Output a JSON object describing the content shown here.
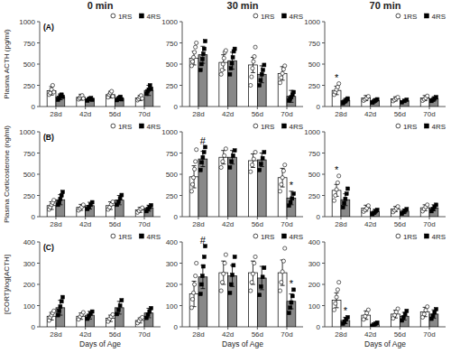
{
  "chart_data": [
    {
      "type": "bar",
      "title": "0 min",
      "ylabel": "Plasma ACTH (pg/ml)",
      "categories": [
        "28d",
        "42d",
        "56d",
        "70d"
      ],
      "series": [
        {
          "name": "1RS",
          "color": "white",
          "marker": "circle",
          "values": [
            185,
            110,
            140,
            100
          ],
          "errors": [
            50,
            35,
            40,
            30
          ],
          "points": [
            [
              140,
              160,
              200,
              250,
              170
            ],
            [
              85,
              100,
              120,
              130,
              95
            ],
            [
              110,
              140,
              160,
              180,
              120
            ],
            [
              75,
              90,
              110,
              130,
              95
            ]
          ]
        },
        {
          "name": "4RS",
          "color": "#888888",
          "marker": "square",
          "values": [
            115,
            90,
            95,
            190
          ],
          "errors": [
            35,
            20,
            25,
            60
          ],
          "points": [
            [
              80,
              100,
              120,
              140,
              115
            ],
            [
              70,
              85,
              90,
              100,
              80
            ],
            [
              75,
              90,
              100,
              115,
              85
            ],
            [
              150,
              180,
              200,
              250,
              210
            ]
          ]
        }
      ],
      "ylim": [
        0,
        1000
      ],
      "yticks": [
        0,
        250,
        500,
        750,
        1000
      ],
      "grid": false,
      "legend": "upper right",
      "annotations": [
        {
          "text": "(A)"
        }
      ]
    },
    {
      "type": "bar",
      "title": "30 min",
      "categories": [
        "28d",
        "42d",
        "56d",
        "70d"
      ],
      "series": [
        {
          "name": "1RS",
          "color": "white",
          "marker": "circle",
          "values": [
            570,
            520,
            490,
            390
          ],
          "errors": [
            80,
            90,
            90,
            80
          ],
          "points": [
            [
              480,
              530,
              580,
              640,
              700,
              750
            ],
            [
              380,
              430,
              500,
              570,
              640,
              660
            ],
            [
              250,
              350,
              450,
              530,
              590,
              700
            ],
            [
              280,
              340,
              390,
              440,
              480
            ]
          ]
        },
        {
          "name": "4RS",
          "color": "#888888",
          "marker": "square",
          "values": [
            610,
            540,
            380,
            120
          ],
          "errors": [
            100,
            100,
            100,
            70
          ],
          "points": [
            [
              430,
              500,
              560,
              620,
              680,
              770
            ],
            [
              380,
              450,
              510,
              580,
              650,
              680
            ],
            [
              250,
              310,
              380,
              430,
              490
            ],
            [
              70,
              90,
              110,
              140,
              170
            ]
          ]
        }
      ],
      "ylim": [
        0,
        1000
      ],
      "yticks": [
        0,
        250,
        500,
        750,
        1000
      ],
      "grid": false,
      "legend": "upper right"
    },
    {
      "type": "bar",
      "title": "70 min",
      "categories": [
        "28d",
        "42d",
        "56d",
        "70d"
      ],
      "series": [
        {
          "name": "1RS",
          "color": "white",
          "marker": "circle",
          "values": [
            190,
            100,
            90,
            100
          ],
          "errors": [
            50,
            30,
            25,
            30
          ],
          "points": [
            [
              140,
              170,
              200,
              230,
              270
            ],
            [
              70,
              85,
              100,
              120
            ],
            [
              65,
              80,
              95,
              110
            ],
            [
              70,
              85,
              100,
              125
            ]
          ]
        },
        {
          "name": "4RS",
          "color": "#888888",
          "marker": "square",
          "values": [
            70,
            70,
            70,
            90
          ],
          "errors": [
            25,
            20,
            15,
            25
          ],
          "points": [
            [
              40,
              55,
              65,
              80,
              95
            ],
            [
              45,
              60,
              75,
              85
            ],
            [
              50,
              65,
              80
            ],
            [
              65,
              80,
              95,
              110
            ]
          ]
        }
      ],
      "ylim": [
        0,
        1000
      ],
      "yticks": [
        0,
        250,
        500,
        750,
        1000
      ],
      "grid": false,
      "legend": "upper right",
      "annotations": [
        {
          "text": "*",
          "category": "28d",
          "series": "1RS"
        }
      ]
    },
    {
      "type": "bar",
      "ylabel": "Plasma Corticosterone (ng/ml)",
      "categories": [
        "28d",
        "42d",
        "56d",
        "70d"
      ],
      "series": [
        {
          "name": "1RS",
          "color": "white",
          "marker": "circle",
          "values": [
            130,
            110,
            130,
            80
          ],
          "errors": [
            45,
            35,
            45,
            30
          ],
          "points": [
            [
              85,
              110,
              140,
              165,
              195
            ],
            [
              75,
              95,
              115,
              140
            ],
            [
              85,
              110,
              145,
              175
            ],
            [
              50,
              70,
              90,
              105
            ]
          ]
        },
        {
          "name": "4RS",
          "color": "#888888",
          "marker": "square",
          "values": [
            200,
            130,
            195,
            100
          ],
          "errors": [
            60,
            40,
            55,
            35
          ],
          "points": [
            [
              140,
              170,
              210,
              250,
              290
            ],
            [
              90,
              115,
              140,
              170
            ],
            [
              140,
              175,
              215,
              255
            ],
            [
              65,
              90,
              110,
              135
            ]
          ]
        }
      ],
      "ylim": [
        0,
        1000
      ],
      "yticks": [
        0,
        250,
        500,
        750,
        1000
      ],
      "grid": false,
      "legend": "upper right",
      "annotations": [
        {
          "text": "(B)"
        }
      ]
    },
    {
      "type": "bar",
      "categories": [
        "28d",
        "42d",
        "56d",
        "70d"
      ],
      "series": [
        {
          "name": "1RS",
          "color": "white",
          "marker": "circle",
          "values": [
            470,
            700,
            660,
            460
          ],
          "errors": [
            130,
            80,
            80,
            110
          ],
          "points": [
            [
              300,
              380,
              460,
              560,
              650,
              790
            ],
            [
              580,
              650,
              720,
              800
            ],
            [
              530,
              610,
              680,
              760
            ],
            [
              300,
              380,
              460,
              540,
              610
            ]
          ]
        },
        {
          "name": "4RS",
          "color": "#888888",
          "marker": "square",
          "values": [
            680,
            700,
            670,
            220
          ],
          "errors": [
            90,
            80,
            80,
            80
          ],
          "points": [
            [
              550,
              640,
              700,
              760,
              820
            ],
            [
              580,
              650,
              720,
              780
            ],
            [
              550,
              620,
              690,
              760
            ],
            [
              130,
              170,
              215,
              270
            ]
          ]
        }
      ],
      "ylim": [
        0,
        1000
      ],
      "yticks": [
        0,
        250,
        500,
        750,
        1000
      ],
      "grid": false,
      "legend": "upper right",
      "annotations": [
        {
          "text": "#",
          "category": "28d",
          "series": "4RS"
        },
        {
          "text": "*",
          "category": "70d",
          "series": "4RS"
        }
      ]
    },
    {
      "type": "bar",
      "categories": [
        "28d",
        "42d",
        "56d",
        "70d"
      ],
      "series": [
        {
          "name": "1RS",
          "color": "white",
          "marker": "circle",
          "values": [
            310,
            100,
            90,
            105
          ],
          "errors": [
            70,
            35,
            30,
            35
          ],
          "points": [
            [
              190,
              250,
              320,
              400,
              480
            ],
            [
              60,
              80,
              100,
              130
            ],
            [
              55,
              75,
              95,
              120
            ],
            [
              65,
              90,
              115,
              140
            ]
          ]
        },
        {
          "name": "4RS",
          "color": "#888888",
          "marker": "square",
          "values": [
            200,
            60,
            65,
            105
          ],
          "errors": [
            70,
            25,
            25,
            35
          ],
          "points": [
            [
              110,
              160,
              210,
              270,
              330
            ],
            [
              30,
              45,
              65,
              80
            ],
            [
              35,
              55,
              72,
              88
            ],
            [
              65,
              90,
              115,
              140
            ]
          ]
        }
      ],
      "ylim": [
        0,
        1000
      ],
      "yticks": [
        0,
        250,
        500,
        750,
        1000
      ],
      "grid": false,
      "legend": "upper right",
      "annotations": [
        {
          "text": "*",
          "category": "28d",
          "series": "1RS"
        }
      ]
    },
    {
      "type": "bar",
      "xlabel": "Days of Age",
      "ylabel": "[CORT]/log[ACTH]",
      "categories": [
        "28d",
        "42d",
        "56d",
        "70d"
      ],
      "series": [
        {
          "name": "1RS",
          "color": "white",
          "marker": "circle",
          "values": [
            50,
            50,
            40,
            30
          ],
          "errors": [
            18,
            15,
            15,
            12
          ],
          "points": [
            [
              30,
              45,
              55,
              65,
              75
            ],
            [
              35,
              48,
              58,
              68
            ],
            [
              25,
              38,
              48,
              58
            ],
            [
              18,
              28,
              38,
              45
            ]
          ]
        },
        {
          "name": "4RS",
          "color": "#888888",
          "marker": "square",
          "values": [
            90,
            55,
            90,
            65
          ],
          "errors": [
            35,
            18,
            30,
            22
          ],
          "points": [
            [
              55,
              75,
              95,
              120,
              140
            ],
            [
              38,
              52,
              62,
              72
            ],
            [
              60,
              80,
              100,
              125
            ],
            [
              42,
              58,
              72,
              88
            ]
          ]
        }
      ],
      "ylim": [
        0,
        400
      ],
      "yticks": [
        0,
        100,
        200,
        300,
        400
      ],
      "grid": false,
      "legend": "upper right",
      "annotations": [
        {
          "text": "(C)"
        }
      ]
    },
    {
      "type": "bar",
      "xlabel": "Days of Age",
      "categories": [
        "28d",
        "42d",
        "56d",
        "70d"
      ],
      "series": [
        {
          "name": "1RS",
          "color": "white",
          "marker": "circle",
          "values": [
            155,
            255,
            255,
            255
          ],
          "errors": [
            60,
            55,
            55,
            60
          ],
          "points": [
            [
              90,
              130,
              160,
              200,
              240,
              300
            ],
            [
              170,
              210,
              250,
              300,
              340
            ],
            [
              170,
              210,
              250,
              300,
              330
            ],
            [
              170,
              210,
              260,
              310,
              370
            ]
          ]
        },
        {
          "name": "4RS",
          "color": "#888888",
          "marker": "square",
          "values": [
            235,
            240,
            230,
            120
          ],
          "errors": [
            55,
            50,
            55,
            35
          ],
          "points": [
            [
              155,
              200,
              240,
              285,
              330,
              380
            ],
            [
              160,
              200,
              245,
              290,
              330
            ],
            [
              150,
              190,
              235,
              278
            ],
            [
              65,
              90,
              115,
              145,
              175
            ]
          ]
        }
      ],
      "ylim": [
        0,
        400
      ],
      "yticks": [
        0,
        100,
        200,
        300,
        400
      ],
      "grid": false,
      "legend": "upper right",
      "annotations": [
        {
          "text": "#",
          "category": "28d",
          "series": "4RS"
        },
        {
          "text": "*",
          "category": "70d",
          "series": "4RS"
        }
      ]
    },
    {
      "type": "bar",
      "xlabel": "Days of Age",
      "categories": [
        "28d",
        "42d",
        "56d",
        "70d"
      ],
      "series": [
        {
          "name": "1RS",
          "color": "white",
          "marker": "circle",
          "values": [
            125,
            55,
            60,
            70
          ],
          "errors": [
            35,
            20,
            18,
            22
          ],
          "points": [
            [
              80,
              110,
              140,
              175,
              210
            ],
            [
              35,
              50,
              65,
              80
            ],
            [
              40,
              55,
              70,
              85
            ],
            [
              45,
              60,
              78,
              95
            ]
          ]
        },
        {
          "name": "4RS",
          "color": "#888888",
          "marker": "square",
          "values": [
            30,
            10,
            50,
            60
          ],
          "errors": [
            15,
            5,
            18,
            20
          ],
          "points": [
            [
              15,
              25,
              35,
              45
            ],
            [
              5,
              10,
              15,
              20
            ],
            [
              30,
              45,
              60,
              75
            ],
            [
              38,
              52,
              68,
              83
            ]
          ]
        }
      ],
      "ylim": [
        0,
        400
      ],
      "yticks": [
        0,
        100,
        200,
        300,
        400
      ],
      "grid": false,
      "legend": "upper right",
      "annotations": [
        {
          "text": "*",
          "category": "28d",
          "series": "4RS"
        }
      ]
    }
  ]
}
